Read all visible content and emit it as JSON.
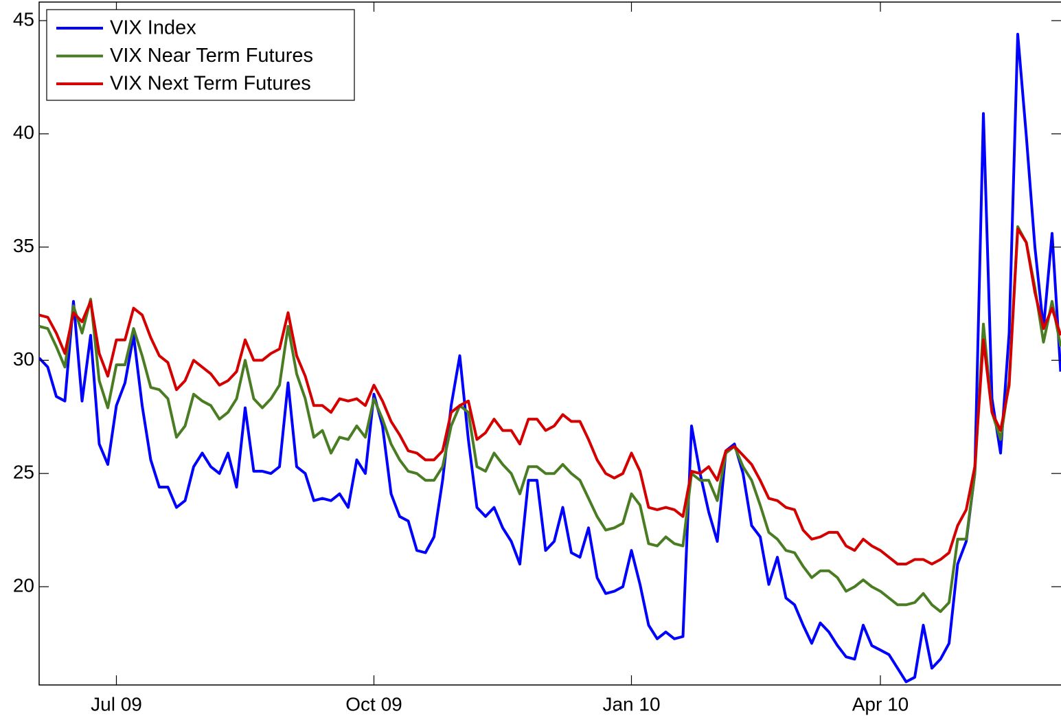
{
  "chart_data": {
    "type": "line",
    "categories": [
      null,
      null,
      null,
      null,
      null,
      null,
      null,
      null,
      null,
      "Jul 09",
      null,
      null,
      null,
      null,
      null,
      null,
      null,
      null,
      null,
      null,
      null,
      null,
      null,
      null,
      null,
      null,
      null,
      null,
      null,
      null,
      null,
      null,
      null,
      null,
      null,
      null,
      null,
      null,
      null,
      "Oct 09",
      null,
      null,
      null,
      null,
      null,
      null,
      null,
      null,
      null,
      null,
      null,
      null,
      null,
      null,
      null,
      null,
      null,
      null,
      null,
      null,
      null,
      null,
      null,
      null,
      null,
      null,
      null,
      null,
      null,
      "Jan 10",
      null,
      null,
      null,
      null,
      null,
      null,
      null,
      null,
      null,
      null,
      null,
      null,
      null,
      null,
      null,
      null,
      null,
      null,
      null,
      null,
      null,
      null,
      null,
      null,
      null,
      null,
      null,
      null,
      "Apr 10",
      null,
      null,
      null,
      null,
      null,
      null,
      null,
      null,
      null,
      null,
      null,
      null,
      null,
      null,
      null,
      null,
      null,
      null,
      null,
      null,
      null
    ],
    "series": [
      {
        "name": "VIX Index",
        "color": "#0000ff",
        "values": [
          30.1,
          29.7,
          28.4,
          28.2,
          32.6,
          28.2,
          31.1,
          26.3,
          25.4,
          28.0,
          29.0,
          31.1,
          28.0,
          25.6,
          24.4,
          24.4,
          23.5,
          23.8,
          25.3,
          25.9,
          25.3,
          25.0,
          25.9,
          24.4,
          27.9,
          25.1,
          25.1,
          25.0,
          25.3,
          29.0,
          25.3,
          25.0,
          23.8,
          23.9,
          23.8,
          24.1,
          23.5,
          25.6,
          25.0,
          28.5,
          27.1,
          24.1,
          23.1,
          22.9,
          21.6,
          21.5,
          22.2,
          24.7,
          28.0,
          30.2,
          26.5,
          23.5,
          23.1,
          23.5,
          22.6,
          22.0,
          21.0,
          24.7,
          24.7,
          21.6,
          22.0,
          23.5,
          21.5,
          21.3,
          22.6,
          20.4,
          19.7,
          19.8,
          20.0,
          21.6,
          20.1,
          18.3,
          17.7,
          18.0,
          17.7,
          17.8,
          27.1,
          25.0,
          23.3,
          22.0,
          26.0,
          26.3,
          25.0,
          22.7,
          22.2,
          20.1,
          21.3,
          19.5,
          19.2,
          18.3,
          17.5,
          18.4,
          18.0,
          17.4,
          16.9,
          16.8,
          18.3,
          17.4,
          17.2,
          17.0,
          16.4,
          15.8,
          16.0,
          18.3,
          16.4,
          16.8,
          17.5,
          21.0,
          22.0,
          25.0,
          40.9,
          28.3,
          25.9,
          31.2,
          44.4,
          39.9,
          35.0,
          31.4,
          35.6,
          29.5
        ]
      },
      {
        "name": "VIX Near Term Futures",
        "color": "#4a7d23",
        "values": [
          31.5,
          31.4,
          30.6,
          29.7,
          32.4,
          31.2,
          32.7,
          29.1,
          27.9,
          29.8,
          29.8,
          31.4,
          30.2,
          28.8,
          28.7,
          28.3,
          26.6,
          27.1,
          28.5,
          28.2,
          28.0,
          27.4,
          27.7,
          28.3,
          30.0,
          28.3,
          27.9,
          28.3,
          28.9,
          31.5,
          29.4,
          28.3,
          26.6,
          26.9,
          25.9,
          26.6,
          26.5,
          27.1,
          26.6,
          28.3,
          27.4,
          26.3,
          25.6,
          25.1,
          25.0,
          24.7,
          24.7,
          25.3,
          27.1,
          28.0,
          27.7,
          25.3,
          25.1,
          25.9,
          25.4,
          25.0,
          24.1,
          25.3,
          25.3,
          25.0,
          25.0,
          25.4,
          25.0,
          24.7,
          23.9,
          23.1,
          22.5,
          22.6,
          22.8,
          24.1,
          23.6,
          21.9,
          21.8,
          22.2,
          21.9,
          21.8,
          25.0,
          24.7,
          24.7,
          23.8,
          25.9,
          26.2,
          25.3,
          24.7,
          23.6,
          22.4,
          22.1,
          21.6,
          21.5,
          20.9,
          20.4,
          20.7,
          20.7,
          20.4,
          19.8,
          20.0,
          20.3,
          20.0,
          19.8,
          19.5,
          19.2,
          19.2,
          19.3,
          19.7,
          19.2,
          18.9,
          19.3,
          22.1,
          22.1,
          25.0,
          31.6,
          27.7,
          26.5,
          29.1,
          35.9,
          35.2,
          33.2,
          30.8,
          32.6,
          30.6
        ]
      },
      {
        "name": "VIX Next Term Futures",
        "color": "#d40000",
        "values": [
          32.0,
          31.9,
          31.2,
          30.3,
          32.1,
          31.7,
          32.6,
          30.3,
          29.3,
          30.9,
          30.9,
          32.3,
          32.0,
          31.0,
          30.2,
          29.9,
          28.7,
          29.1,
          30.0,
          29.7,
          29.4,
          28.9,
          29.1,
          29.5,
          30.9,
          30.0,
          30.0,
          30.3,
          30.5,
          32.1,
          30.2,
          29.3,
          28.0,
          28.0,
          27.7,
          28.3,
          28.2,
          28.3,
          28.0,
          28.9,
          28.2,
          27.3,
          26.7,
          26.0,
          25.9,
          25.6,
          25.6,
          26.0,
          27.7,
          28.0,
          28.2,
          26.5,
          26.8,
          27.4,
          26.9,
          26.9,
          26.3,
          27.4,
          27.4,
          26.9,
          27.1,
          27.6,
          27.3,
          27.3,
          26.5,
          25.6,
          25.0,
          24.8,
          25.0,
          25.9,
          25.1,
          23.5,
          23.4,
          23.5,
          23.4,
          23.1,
          25.1,
          25.0,
          25.3,
          24.7,
          26.0,
          26.2,
          25.8,
          25.4,
          24.7,
          23.9,
          23.8,
          23.5,
          23.4,
          22.5,
          22.1,
          22.2,
          22.4,
          22.4,
          21.8,
          21.6,
          22.1,
          21.8,
          21.6,
          21.3,
          21.0,
          21.0,
          21.2,
          21.2,
          21.0,
          21.2,
          21.5,
          22.7,
          23.4,
          25.3,
          30.9,
          27.7,
          26.9,
          28.9,
          35.8,
          35.2,
          33.0,
          31.4,
          32.3,
          31.1
        ]
      }
    ],
    "ylim": [
      15.66,
      45.82
    ],
    "yticks": [
      20,
      25,
      30,
      35,
      40,
      45
    ],
    "legend": "upper left"
  }
}
